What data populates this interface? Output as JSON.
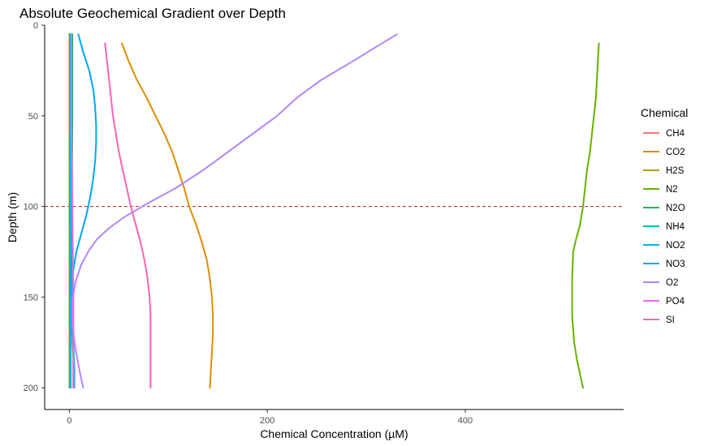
{
  "chart_data": {
    "type": "line",
    "title": "Absolute Geochemical Gradient over Depth",
    "xlabel": "Chemical Concentration (µM)",
    "ylabel": "Depth (m)",
    "xlim": [
      -25,
      560
    ],
    "ylim": [
      0,
      212
    ],
    "y_reversed": true,
    "grid": false,
    "x_ticks": [
      0,
      200,
      400
    ],
    "y_ticks": [
      0,
      50,
      100,
      150,
      200
    ],
    "legend_title": "Chemical",
    "legend_position": "right",
    "reference_line": {
      "axis": "y",
      "value": 100,
      "color": "#B22222",
      "style": "dashed"
    },
    "series": [
      {
        "name": "CH4",
        "color": "#F8766D",
        "points": [
          [
            1.5,
            5
          ],
          [
            1.5,
            50
          ],
          [
            1.5,
            100
          ],
          [
            1.5,
            150
          ],
          [
            1.5,
            200
          ]
        ]
      },
      {
        "name": "CO2",
        "color": "#DB8E00",
        "points": [
          [
            53,
            10
          ],
          [
            60,
            20
          ],
          [
            68,
            30
          ],
          [
            78,
            40
          ],
          [
            87,
            50
          ],
          [
            96,
            60
          ],
          [
            104,
            70
          ],
          [
            110,
            80
          ],
          [
            116,
            90
          ],
          [
            121,
            100
          ],
          [
            128,
            110
          ],
          [
            134,
            120
          ],
          [
            139,
            130
          ],
          [
            142,
            140
          ],
          [
            144,
            150
          ],
          [
            145,
            160
          ],
          [
            145,
            170
          ],
          [
            144,
            180
          ],
          [
            143,
            190
          ],
          [
            142,
            200
          ]
        ]
      },
      {
        "name": "H2S",
        "color": "#AEA200",
        "points": [
          [
            0,
            5
          ],
          [
            0,
            50
          ],
          [
            0,
            100
          ],
          [
            0,
            150
          ],
          [
            0,
            200
          ]
        ]
      },
      {
        "name": "N2",
        "color": "#64B200",
        "points": [
          [
            535,
            10
          ],
          [
            534,
            20
          ],
          [
            533,
            30
          ],
          [
            532,
            40
          ],
          [
            530,
            50
          ],
          [
            528,
            60
          ],
          [
            526,
            70
          ],
          [
            523,
            80
          ],
          [
            521,
            90
          ],
          [
            519,
            100
          ],
          [
            516,
            110
          ],
          [
            512,
            118
          ],
          [
            509,
            125
          ],
          [
            508,
            140
          ],
          [
            508,
            160
          ],
          [
            510,
            175
          ],
          [
            513,
            185
          ],
          [
            517,
            195
          ],
          [
            519,
            200
          ]
        ]
      },
      {
        "name": "N2O",
        "color": "#00BD5C",
        "points": [
          [
            3,
            5
          ],
          [
            3,
            50
          ],
          [
            2.5,
            100
          ],
          [
            2,
            140
          ],
          [
            1.5,
            160
          ],
          [
            3,
            170
          ],
          [
            4,
            185
          ],
          [
            4,
            200
          ]
        ]
      },
      {
        "name": "NH4",
        "color": "#00C1A7",
        "points": [
          [
            0.5,
            5
          ],
          [
            0.5,
            100
          ],
          [
            0.5,
            200
          ]
        ]
      },
      {
        "name": "NO2",
        "color": "#00BADE",
        "points": [
          [
            1,
            5
          ],
          [
            1,
            100
          ],
          [
            1,
            200
          ]
        ]
      },
      {
        "name": "NO3",
        "color": "#00A6FF",
        "points": [
          [
            9,
            5
          ],
          [
            14,
            15
          ],
          [
            20,
            25
          ],
          [
            24,
            35
          ],
          [
            26,
            45
          ],
          [
            27,
            55
          ],
          [
            27,
            65
          ],
          [
            26,
            75
          ],
          [
            24,
            85
          ],
          [
            21,
            95
          ],
          [
            17,
            105
          ],
          [
            12,
            115
          ],
          [
            7,
            125
          ],
          [
            4,
            135
          ],
          [
            3,
            145
          ],
          [
            3,
            160
          ],
          [
            4,
            175
          ],
          [
            5,
            190
          ],
          [
            5,
            200
          ]
        ]
      },
      {
        "name": "O2",
        "color": "#B385FF",
        "points": [
          [
            331,
            5
          ],
          [
            310,
            12
          ],
          [
            280,
            22
          ],
          [
            255,
            30
          ],
          [
            230,
            40
          ],
          [
            210,
            50
          ],
          [
            185,
            60
          ],
          [
            160,
            70
          ],
          [
            135,
            80
          ],
          [
            107,
            90
          ],
          [
            80,
            98
          ],
          [
            55,
            106
          ],
          [
            40,
            112
          ],
          [
            28,
            118
          ],
          [
            20,
            124
          ],
          [
            12,
            132
          ],
          [
            6,
            142
          ],
          [
            3,
            152
          ],
          [
            3,
            165
          ],
          [
            6,
            178
          ],
          [
            10,
            190
          ],
          [
            14,
            200
          ]
        ]
      },
      {
        "name": "PO4",
        "color": "#EF67EB",
        "points": [
          [
            2,
            5
          ],
          [
            2,
            50
          ],
          [
            3,
            100
          ],
          [
            4,
            150
          ],
          [
            4,
            200
          ]
        ]
      },
      {
        "name": "SI",
        "color": "#FF63B6",
        "points": [
          [
            36,
            10
          ],
          [
            38,
            20
          ],
          [
            40,
            30
          ],
          [
            42,
            40
          ],
          [
            44,
            50
          ],
          [
            47,
            60
          ],
          [
            50,
            70
          ],
          [
            54,
            80
          ],
          [
            58,
            90
          ],
          [
            62,
            100
          ],
          [
            67,
            110
          ],
          [
            72,
            120
          ],
          [
            76,
            130
          ],
          [
            79,
            140
          ],
          [
            81,
            150
          ],
          [
            82,
            160
          ],
          [
            82,
            170
          ],
          [
            82,
            180
          ],
          [
            82,
            190
          ],
          [
            82,
            200
          ]
        ]
      }
    ]
  }
}
